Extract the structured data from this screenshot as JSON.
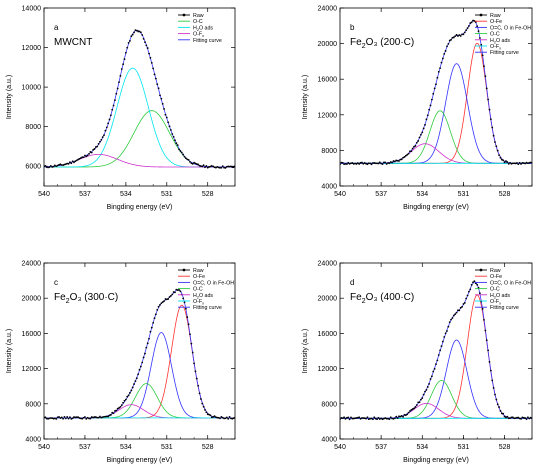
{
  "figure": {
    "x_label": "Bingding energy (eV)",
    "y_label": "Intensity (a.u.)"
  },
  "chart_data": [
    {
      "type": "line",
      "panel_letter": "a",
      "sample": "MWCNT",
      "xlabel": "Bingding energy (eV)",
      "ylabel": "Intensity (a.u.)",
      "xlim": [
        540,
        526
      ],
      "ylim": [
        5000,
        14000
      ],
      "x_ticks": [
        540,
        537,
        534,
        531,
        528
      ],
      "y_ticks": [
        6000,
        8000,
        10000,
        12000,
        14000
      ],
      "baseline": 5960,
      "legend": [
        {
          "name": "Raw",
          "color": "#000000",
          "style": "dots"
        },
        {
          "name": "O-C",
          "color": "#2ecc40",
          "style": "line"
        },
        {
          "name": "H₂O ads",
          "color": "#00e5ee",
          "style": "line"
        },
        {
          "name": "O-Fₓ",
          "color": "#cc33cc",
          "style": "line"
        },
        {
          "name": "Fitting curve",
          "color": "#3333ff",
          "style": "line"
        }
      ],
      "components": [
        {
          "name": "O-C",
          "color": "#2ecc40",
          "center": 532.1,
          "amplitude": 2850,
          "sigma": 1.3
        },
        {
          "name": "H₂O ads",
          "color": "#00e5ee",
          "center": 533.5,
          "amplitude": 5000,
          "sigma": 1.15
        },
        {
          "name": "O-Fₓ",
          "color": "#cc33cc",
          "center": 536.0,
          "amplitude": 640,
          "sigma": 1.4
        }
      ]
    },
    {
      "type": "line",
      "panel_letter": "b",
      "sample": "Fe₂O₃ (200·C)",
      "xlabel": "Bingding energy (eV)",
      "ylabel": "Intensity (a.u.)",
      "xlim": [
        540,
        526
      ],
      "ylim": [
        4000,
        24000
      ],
      "x_ticks": [
        540,
        537,
        534,
        531,
        528
      ],
      "y_ticks": [
        4000,
        8000,
        12000,
        16000,
        20000,
        24000
      ],
      "baseline": 6550,
      "legend": [
        {
          "name": "Raw",
          "color": "#000000",
          "style": "dots"
        },
        {
          "name": "O-Fe",
          "color": "#ff3333",
          "style": "line"
        },
        {
          "name": "O=C, O in Fe-OH",
          "color": "#3333ff",
          "style": "line"
        },
        {
          "name": "O-C",
          "color": "#2ecc40",
          "style": "line"
        },
        {
          "name": "H₂O ads",
          "color": "#cc33cc",
          "style": "line"
        },
        {
          "name": "O-Fₓ",
          "color": "#00e5ee",
          "style": "line"
        },
        {
          "name": "Fitting curve",
          "color": "#3333ff",
          "style": "line"
        }
      ],
      "components": [
        {
          "name": "O-Fe",
          "color": "#ff3333",
          "center": 530.0,
          "amplitude": 13500,
          "sigma": 0.7
        },
        {
          "name": "O=C, O in Fe-OH",
          "color": "#3333ff",
          "center": 531.5,
          "amplitude": 11200,
          "sigma": 0.8
        },
        {
          "name": "O-C",
          "color": "#2ecc40",
          "center": 532.7,
          "amplitude": 5900,
          "sigma": 0.75
        },
        {
          "name": "H₂O ads",
          "color": "#cc33cc",
          "center": 533.8,
          "amplitude": 2200,
          "sigma": 1.0
        },
        {
          "name": "O-Fₓ",
          "color": "#00e5ee",
          "center": 535.5,
          "amplitude": 0,
          "sigma": 1.0
        }
      ]
    },
    {
      "type": "line",
      "panel_letter": "c",
      "sample": "Fe₂O₃ (300·C)",
      "xlabel": "Bingding energy (eV)",
      "ylabel": "Intensity (a.u.)",
      "xlim": [
        540,
        526
      ],
      "ylim": [
        4000,
        24000
      ],
      "x_ticks": [
        540,
        537,
        534,
        531,
        528
      ],
      "y_ticks": [
        4000,
        8000,
        12000,
        16000,
        20000,
        24000
      ],
      "baseline": 6400,
      "legend": [
        {
          "name": "Raw",
          "color": "#000000",
          "style": "dots"
        },
        {
          "name": "O-Fe",
          "color": "#ff3333",
          "style": "line"
        },
        {
          "name": "O=C, O in Fe-OH",
          "color": "#3333ff",
          "style": "line"
        },
        {
          "name": "O-C",
          "color": "#2ecc40",
          "style": "line"
        },
        {
          "name": "H₂O ads",
          "color": "#cc33cc",
          "style": "line"
        },
        {
          "name": "O-Fₓ",
          "color": "#00e5ee",
          "style": "line"
        },
        {
          "name": "Fitting curve",
          "color": "#3333ff",
          "style": "line"
        }
      ],
      "components": [
        {
          "name": "O-Fe",
          "color": "#ff3333",
          "center": 529.9,
          "amplitude": 12800,
          "sigma": 0.75
        },
        {
          "name": "O=C, O in Fe-OH",
          "color": "#3333ff",
          "center": 531.4,
          "amplitude": 9700,
          "sigma": 0.75
        },
        {
          "name": "O-C",
          "color": "#2ecc40",
          "center": 532.5,
          "amplitude": 3900,
          "sigma": 0.8
        },
        {
          "name": "H₂O ads",
          "color": "#cc33cc",
          "center": 533.6,
          "amplitude": 1500,
          "sigma": 0.9
        },
        {
          "name": "O-Fₓ",
          "color": "#00e5ee",
          "center": 535.0,
          "amplitude": 0,
          "sigma": 1.0
        }
      ]
    },
    {
      "type": "line",
      "panel_letter": "d",
      "sample": "Fe₂O₃ (400·C)",
      "xlabel": "Bingding energy (eV)",
      "ylabel": "Intensity (a.u.)",
      "xlim": [
        540,
        526
      ],
      "ylim": [
        4000,
        24000
      ],
      "x_ticks": [
        540,
        537,
        534,
        531,
        528
      ],
      "y_ticks": [
        4000,
        8000,
        12000,
        16000,
        20000,
        24000
      ],
      "baseline": 6350,
      "legend": [
        {
          "name": "Raw",
          "color": "#000000",
          "style": "dots"
        },
        {
          "name": "O-Fe",
          "color": "#ff3333",
          "style": "line"
        },
        {
          "name": "O=C, O in Fe-OH",
          "color": "#3333ff",
          "style": "line"
        },
        {
          "name": "O-C",
          "color": "#2ecc40",
          "style": "line"
        },
        {
          "name": "H₂O ads",
          "color": "#cc33cc",
          "style": "line"
        },
        {
          "name": "O-Fₓ",
          "color": "#00e5ee",
          "style": "line"
        },
        {
          "name": "Fitting curve",
          "color": "#3333ff",
          "style": "line"
        }
      ],
      "components": [
        {
          "name": "O-Fe",
          "color": "#ff3333",
          "center": 530.0,
          "amplitude": 14000,
          "sigma": 0.72
        },
        {
          "name": "O=C, O in Fe-OH",
          "color": "#3333ff",
          "center": 531.5,
          "amplitude": 8900,
          "sigma": 0.75
        },
        {
          "name": "O-C",
          "color": "#2ecc40",
          "center": 532.6,
          "amplitude": 4300,
          "sigma": 0.75
        },
        {
          "name": "H₂O ads",
          "color": "#cc33cc",
          "center": 533.7,
          "amplitude": 1700,
          "sigma": 0.9
        },
        {
          "name": "O-Fₓ",
          "color": "#00e5ee",
          "center": 535.2,
          "amplitude": 0,
          "sigma": 1.0
        }
      ]
    }
  ]
}
